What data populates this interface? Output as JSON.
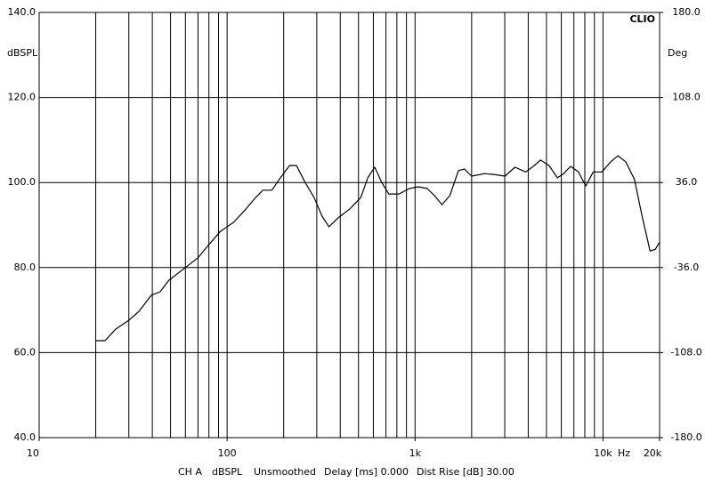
{
  "chart_data": {
    "type": "line",
    "y_label": "dBSPL",
    "y2_label": "Deg",
    "brand": "CLIO",
    "x_unit": "Hz",
    "footer": [
      "CH A",
      "dBSPL",
      "Unsmoothed",
      "Delay [ms] 0.000",
      "Dist Rise [dB] 30.00"
    ],
    "log_x": true,
    "grid": true,
    "color": "#000000",
    "xlim": [
      10,
      20000
    ],
    "xticks": [
      10,
      100,
      {
        "value": 1000,
        "label": "1k"
      },
      {
        "value": 10000,
        "label": "10k"
      },
      {
        "value": 20000,
        "label": "20k"
      }
    ],
    "xgrid": [
      20,
      30,
      40,
      50,
      60,
      70,
      80,
      90,
      100,
      200,
      300,
      400,
      500,
      600,
      700,
      800,
      900,
      1000,
      2000,
      3000,
      4000,
      5000,
      6000,
      7000,
      8000,
      9000,
      10000
    ],
    "ylim": [
      40,
      140
    ],
    "yticks": [
      {
        "value": 40,
        "label": "40.0"
      },
      {
        "value": 60,
        "label": "60.0"
      },
      {
        "value": 80,
        "label": "80.0"
      },
      {
        "value": 100,
        "label": "100.0"
      },
      {
        "value": 120,
        "label": "120.0"
      },
      {
        "value": 140,
        "label": "140.0"
      }
    ],
    "y2lim": [
      -180,
      180
    ],
    "y2ticks": [
      {
        "value": -180,
        "label": "-180.0"
      },
      {
        "value": -108,
        "label": "-108.0"
      },
      {
        "value": -36,
        "label": "-36.0"
      },
      {
        "value": 36,
        "label": "36.0"
      },
      {
        "value": 108,
        "label": "108.0"
      },
      {
        "value": 180,
        "label": "180.0"
      }
    ],
    "x": [
      20,
      22.4,
      25.5,
      30,
      34,
      39.5,
      44,
      49,
      58,
      70,
      80,
      92,
      108,
      125,
      142,
      155,
      173,
      192,
      215,
      234,
      260,
      290,
      320,
      348,
      390,
      450,
      515,
      560,
      610,
      665,
      725,
      820,
      935,
      1040,
      1160,
      1270,
      1390,
      1530,
      1700,
      1830,
      2000,
      2350,
      2620,
      3010,
      3400,
      3880,
      4260,
      4650,
      5160,
      5720,
      6170,
      6720,
      7400,
      8100,
      8870,
      9870,
      11000,
      12000,
      13200,
      14700,
      16100,
      17800,
      19000,
      20000
    ],
    "series": [
      {
        "values": [
          62.8,
          62.8,
          65.5,
          67.6,
          69.7,
          73.5,
          74.3,
          77,
          79.5,
          82.3,
          85.4,
          88.5,
          90.6,
          93.6,
          96.5,
          98.2,
          98.2,
          101.1,
          104,
          104,
          100,
          96.5,
          92.1,
          89.6,
          91.7,
          93.8,
          96.5,
          101.1,
          103.6,
          100,
          97.3,
          97.3,
          98.6,
          99,
          98.6,
          96.9,
          94.8,
          96.9,
          102.8,
          103.2,
          101.5,
          102.1,
          101.9,
          101.5,
          103.6,
          102.5,
          103.8,
          105.3,
          104,
          101.1,
          102.1,
          103.8,
          102.5,
          99.2,
          102.5,
          102.5,
          104.9,
          106.3,
          104.9,
          100.7,
          92.3,
          83.9,
          84.3,
          86
        ]
      }
    ]
  }
}
